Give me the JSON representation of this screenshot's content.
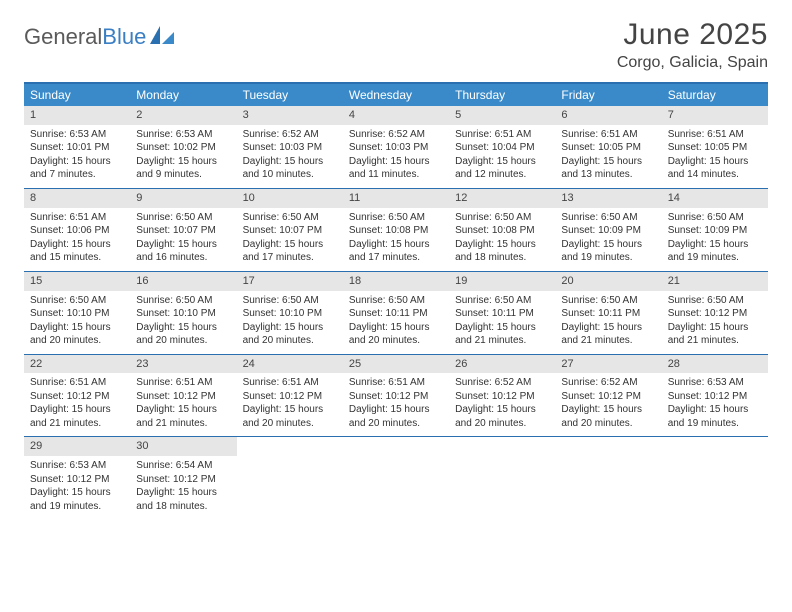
{
  "brand": {
    "word1": "General",
    "word2": "Blue"
  },
  "title": "June 2025",
  "location": "Corgo, Galicia, Spain",
  "colors": {
    "header_bar": "#3a8ac9",
    "border": "#2a6fb0",
    "daynum_bg": "#e6e6e6",
    "text": "#333333",
    "logo_gray": "#5a5a5a",
    "logo_blue": "#3a7fc4",
    "background": "#ffffff"
  },
  "typography": {
    "title_fontsize": 30,
    "location_fontsize": 16,
    "weekday_fontsize": 12,
    "daynum_fontsize": 11,
    "body_fontsize": 10
  },
  "weekdays": [
    "Sunday",
    "Monday",
    "Tuesday",
    "Wednesday",
    "Thursday",
    "Friday",
    "Saturday"
  ],
  "weeks": [
    [
      {
        "n": "1",
        "sr": "Sunrise: 6:53 AM",
        "ss": "Sunset: 10:01 PM",
        "dl": "Daylight: 15 hours and 7 minutes."
      },
      {
        "n": "2",
        "sr": "Sunrise: 6:53 AM",
        "ss": "Sunset: 10:02 PM",
        "dl": "Daylight: 15 hours and 9 minutes."
      },
      {
        "n": "3",
        "sr": "Sunrise: 6:52 AM",
        "ss": "Sunset: 10:03 PM",
        "dl": "Daylight: 15 hours and 10 minutes."
      },
      {
        "n": "4",
        "sr": "Sunrise: 6:52 AM",
        "ss": "Sunset: 10:03 PM",
        "dl": "Daylight: 15 hours and 11 minutes."
      },
      {
        "n": "5",
        "sr": "Sunrise: 6:51 AM",
        "ss": "Sunset: 10:04 PM",
        "dl": "Daylight: 15 hours and 12 minutes."
      },
      {
        "n": "6",
        "sr": "Sunrise: 6:51 AM",
        "ss": "Sunset: 10:05 PM",
        "dl": "Daylight: 15 hours and 13 minutes."
      },
      {
        "n": "7",
        "sr": "Sunrise: 6:51 AM",
        "ss": "Sunset: 10:05 PM",
        "dl": "Daylight: 15 hours and 14 minutes."
      }
    ],
    [
      {
        "n": "8",
        "sr": "Sunrise: 6:51 AM",
        "ss": "Sunset: 10:06 PM",
        "dl": "Daylight: 15 hours and 15 minutes."
      },
      {
        "n": "9",
        "sr": "Sunrise: 6:50 AM",
        "ss": "Sunset: 10:07 PM",
        "dl": "Daylight: 15 hours and 16 minutes."
      },
      {
        "n": "10",
        "sr": "Sunrise: 6:50 AM",
        "ss": "Sunset: 10:07 PM",
        "dl": "Daylight: 15 hours and 17 minutes."
      },
      {
        "n": "11",
        "sr": "Sunrise: 6:50 AM",
        "ss": "Sunset: 10:08 PM",
        "dl": "Daylight: 15 hours and 17 minutes."
      },
      {
        "n": "12",
        "sr": "Sunrise: 6:50 AM",
        "ss": "Sunset: 10:08 PM",
        "dl": "Daylight: 15 hours and 18 minutes."
      },
      {
        "n": "13",
        "sr": "Sunrise: 6:50 AM",
        "ss": "Sunset: 10:09 PM",
        "dl": "Daylight: 15 hours and 19 minutes."
      },
      {
        "n": "14",
        "sr": "Sunrise: 6:50 AM",
        "ss": "Sunset: 10:09 PM",
        "dl": "Daylight: 15 hours and 19 minutes."
      }
    ],
    [
      {
        "n": "15",
        "sr": "Sunrise: 6:50 AM",
        "ss": "Sunset: 10:10 PM",
        "dl": "Daylight: 15 hours and 20 minutes."
      },
      {
        "n": "16",
        "sr": "Sunrise: 6:50 AM",
        "ss": "Sunset: 10:10 PM",
        "dl": "Daylight: 15 hours and 20 minutes."
      },
      {
        "n": "17",
        "sr": "Sunrise: 6:50 AM",
        "ss": "Sunset: 10:10 PM",
        "dl": "Daylight: 15 hours and 20 minutes."
      },
      {
        "n": "18",
        "sr": "Sunrise: 6:50 AM",
        "ss": "Sunset: 10:11 PM",
        "dl": "Daylight: 15 hours and 20 minutes."
      },
      {
        "n": "19",
        "sr": "Sunrise: 6:50 AM",
        "ss": "Sunset: 10:11 PM",
        "dl": "Daylight: 15 hours and 21 minutes."
      },
      {
        "n": "20",
        "sr": "Sunrise: 6:50 AM",
        "ss": "Sunset: 10:11 PM",
        "dl": "Daylight: 15 hours and 21 minutes."
      },
      {
        "n": "21",
        "sr": "Sunrise: 6:50 AM",
        "ss": "Sunset: 10:12 PM",
        "dl": "Daylight: 15 hours and 21 minutes."
      }
    ],
    [
      {
        "n": "22",
        "sr": "Sunrise: 6:51 AM",
        "ss": "Sunset: 10:12 PM",
        "dl": "Daylight: 15 hours and 21 minutes."
      },
      {
        "n": "23",
        "sr": "Sunrise: 6:51 AM",
        "ss": "Sunset: 10:12 PM",
        "dl": "Daylight: 15 hours and 21 minutes."
      },
      {
        "n": "24",
        "sr": "Sunrise: 6:51 AM",
        "ss": "Sunset: 10:12 PM",
        "dl": "Daylight: 15 hours and 20 minutes."
      },
      {
        "n": "25",
        "sr": "Sunrise: 6:51 AM",
        "ss": "Sunset: 10:12 PM",
        "dl": "Daylight: 15 hours and 20 minutes."
      },
      {
        "n": "26",
        "sr": "Sunrise: 6:52 AM",
        "ss": "Sunset: 10:12 PM",
        "dl": "Daylight: 15 hours and 20 minutes."
      },
      {
        "n": "27",
        "sr": "Sunrise: 6:52 AM",
        "ss": "Sunset: 10:12 PM",
        "dl": "Daylight: 15 hours and 20 minutes."
      },
      {
        "n": "28",
        "sr": "Sunrise: 6:53 AM",
        "ss": "Sunset: 10:12 PM",
        "dl": "Daylight: 15 hours and 19 minutes."
      }
    ],
    [
      {
        "n": "29",
        "sr": "Sunrise: 6:53 AM",
        "ss": "Sunset: 10:12 PM",
        "dl": "Daylight: 15 hours and 19 minutes."
      },
      {
        "n": "30",
        "sr": "Sunrise: 6:54 AM",
        "ss": "Sunset: 10:12 PM",
        "dl": "Daylight: 15 hours and 18 minutes."
      },
      null,
      null,
      null,
      null,
      null
    ]
  ]
}
